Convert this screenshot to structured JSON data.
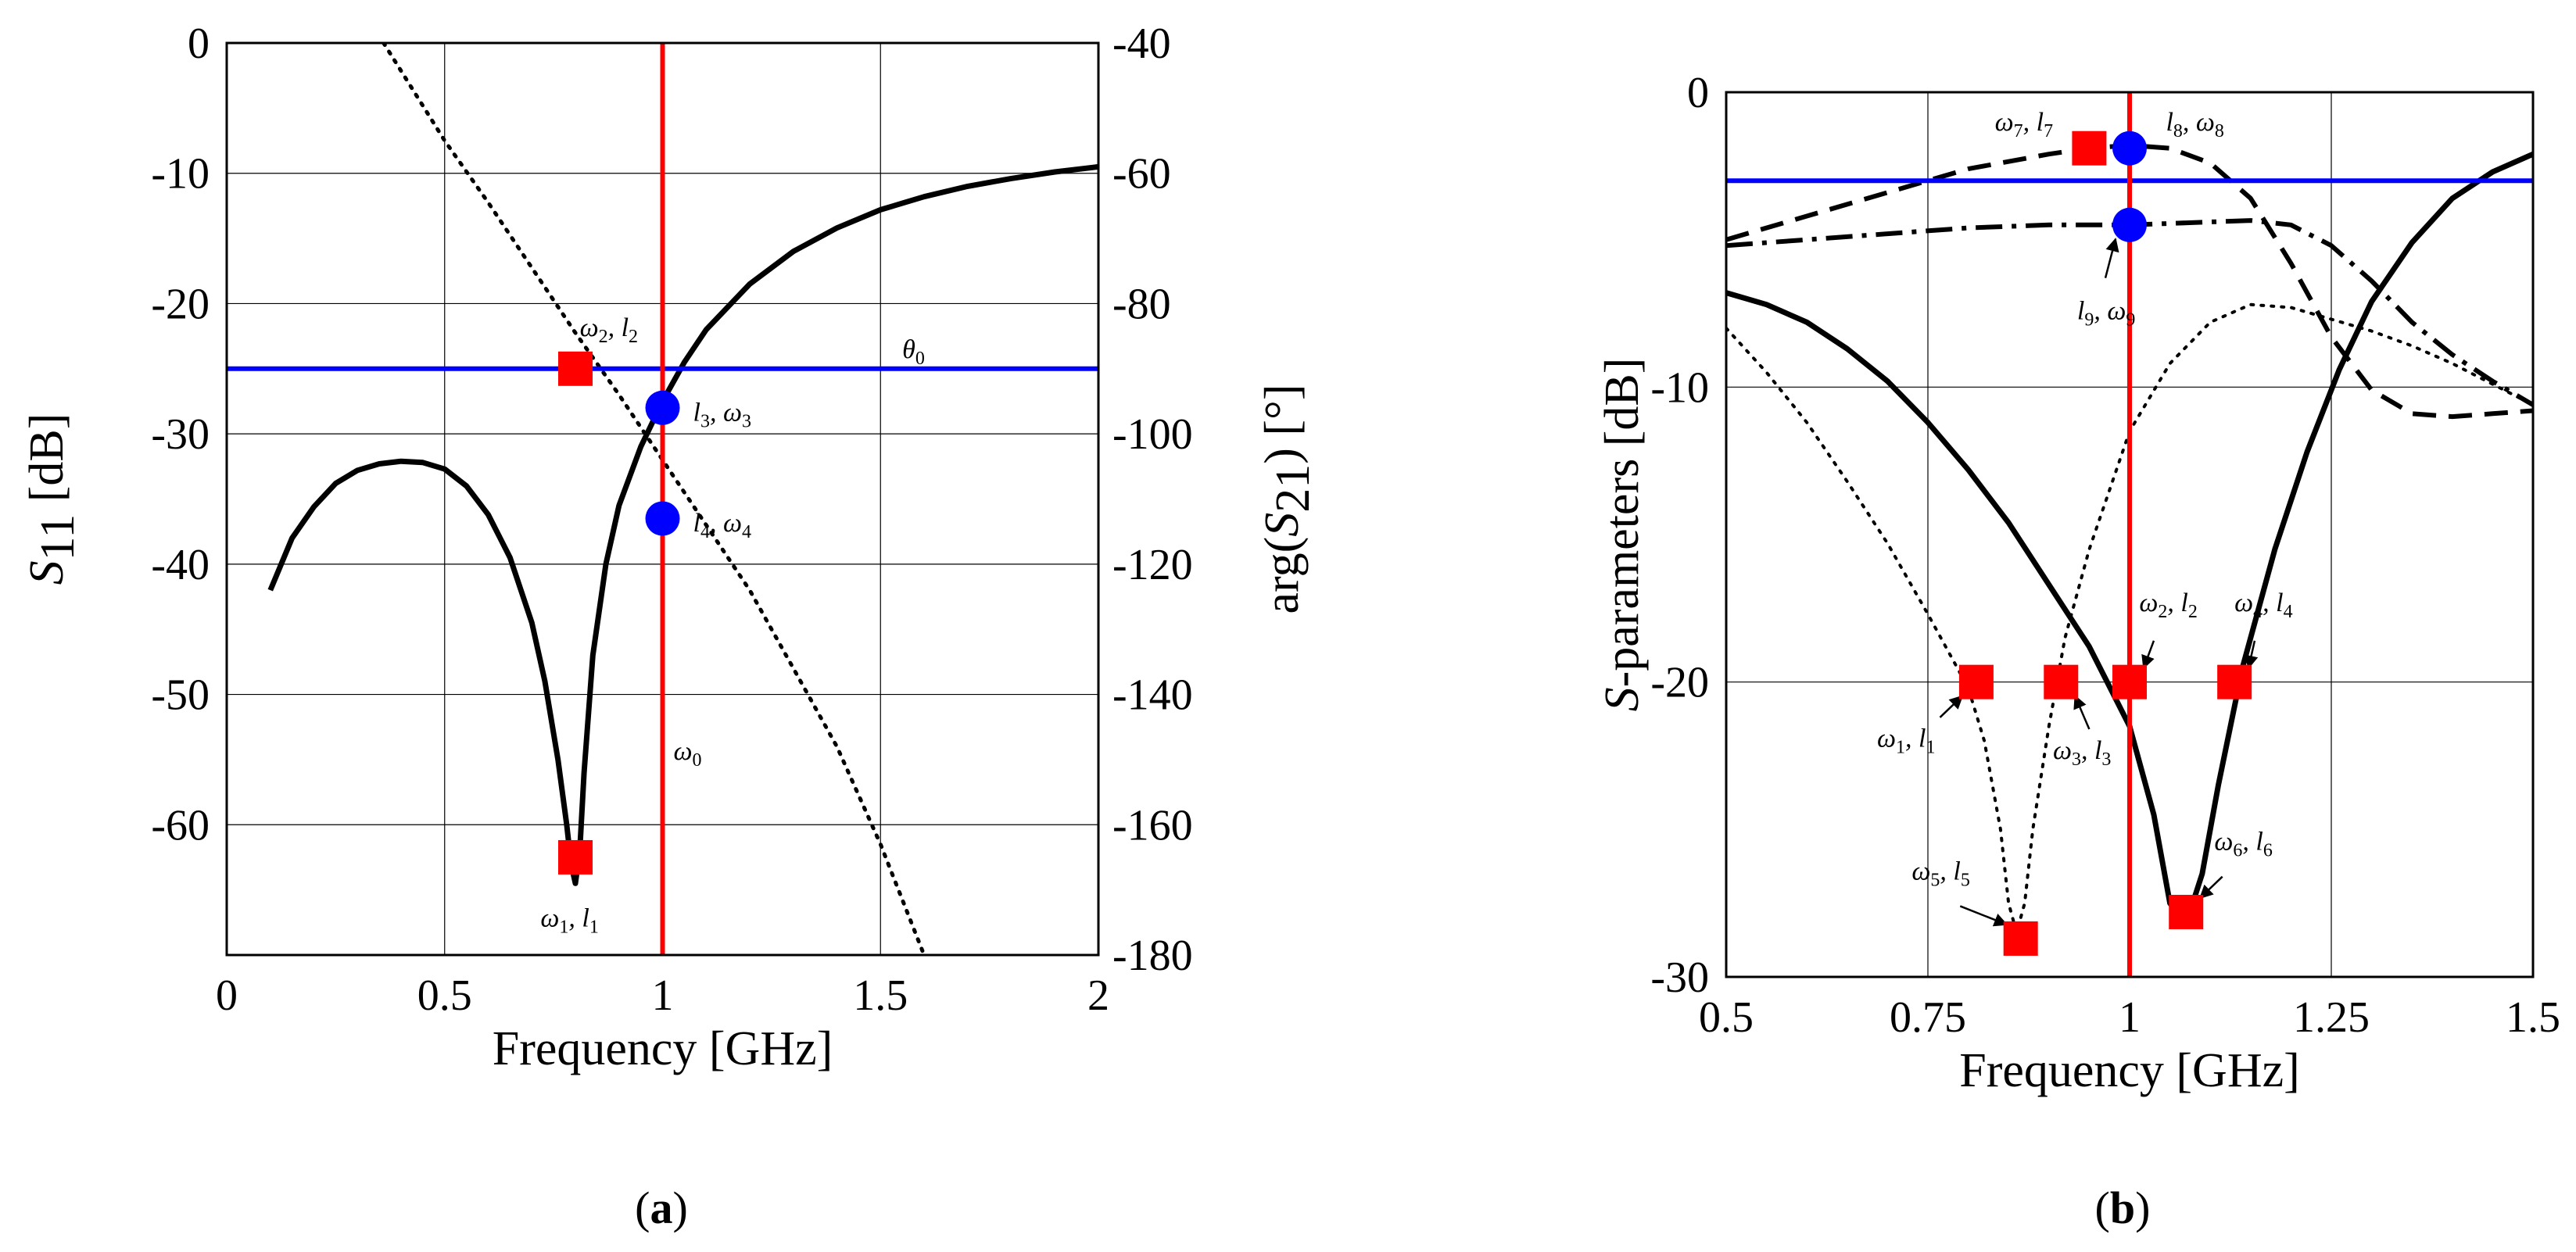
{
  "charts": [
    {
      "id": "a",
      "type": "line",
      "caption": {
        "open": "(",
        "letter": "a",
        "close": ")"
      },
      "xlabel": "Frequency [GHz]",
      "ylabel": {
        "main": "S",
        "sub": "11",
        "unit": " [dB]"
      },
      "y2label": {
        "pre": "arg(",
        "main": "S",
        "sub": "21",
        "post": ") [°]"
      },
      "xlim": [
        0,
        2
      ],
      "ylim": [
        -70,
        0
      ],
      "y2lim": [
        -180,
        -40
      ],
      "xticks": [
        0,
        0.5,
        1,
        1.5,
        2
      ],
      "xticklabels": [
        "0",
        "0.5",
        "1",
        "1.5",
        "2"
      ],
      "yticks": [
        0,
        -10,
        -20,
        -30,
        -40,
        -50,
        -60
      ],
      "yticklabels": [
        "0",
        "-10",
        "-20",
        "-30",
        "-40",
        "-50",
        "-60"
      ],
      "y2ticks": [
        -40,
        -60,
        -80,
        -100,
        -120,
        -140,
        -160,
        -180
      ],
      "y2ticklabels": [
        "-40",
        "-60",
        "-80",
        "-100",
        "-120",
        "-140",
        "-160",
        "-180"
      ],
      "grid": true,
      "series": [
        {
          "name": "S11",
          "axis": "left",
          "style": "solid",
          "width": 7,
          "x": [
            0.1,
            0.15,
            0.2,
            0.25,
            0.3,
            0.35,
            0.4,
            0.45,
            0.5,
            0.55,
            0.6,
            0.65,
            0.7,
            0.73,
            0.76,
            0.78,
            0.79,
            0.8,
            0.81,
            0.82,
            0.84,
            0.87,
            0.9,
            0.95,
            1.0,
            1.05,
            1.1,
            1.2,
            1.3,
            1.4,
            1.5,
            1.6,
            1.7,
            1.8,
            1.9,
            2.0
          ],
          "y": [
            -42,
            -38,
            -35.6,
            -33.8,
            -32.8,
            -32.3,
            -32.1,
            -32.2,
            -32.7,
            -34,
            -36.2,
            -39.5,
            -44.5,
            -49,
            -55,
            -60,
            -63,
            -64.5,
            -62,
            -56,
            -47,
            -40,
            -35.5,
            -31,
            -27.5,
            -24.5,
            -22,
            -18.5,
            -16,
            -14.2,
            -12.8,
            -11.8,
            -11,
            -10.4,
            -9.9,
            -9.5
          ]
        },
        {
          "name": "arg(S21)",
          "axis": "right",
          "style": "dotted",
          "width": 5,
          "x": [
            0.36,
            0.5,
            0.6,
            0.7,
            0.8,
            0.9,
            1.0,
            1.1,
            1.2,
            1.3,
            1.4,
            1.5,
            1.6
          ],
          "y": [
            -40,
            -55,
            -64.5,
            -74.5,
            -84.5,
            -94,
            -104,
            -114,
            -124,
            -136,
            -148,
            -163,
            -180
          ]
        }
      ],
      "hlines": [
        {
          "axis": "left",
          "value": -25,
          "color": "#0000ff",
          "label": {
            "sym": "θ",
            "sub": "0"
          },
          "label_x": 1.55
        }
      ],
      "vlines": [
        {
          "value": 1.0,
          "color": "#ff0000",
          "label": {
            "sym": "ω",
            "sub": "0"
          },
          "label_y": -55
        }
      ],
      "markers": [
        {
          "shape": "square",
          "x": 0.8,
          "y": -25,
          "label": [
            {
              "t": "ω",
              "s": "2"
            },
            {
              "t": ", l",
              "s": "2"
            }
          ],
          "lx": 0.81,
          "ly": -22.5
        },
        {
          "shape": "square",
          "x": 0.8,
          "y": -62.5,
          "label": [
            {
              "t": "ω",
              "s": "1"
            },
            {
              "t": ", l",
              "s": "1"
            }
          ],
          "lx": 0.72,
          "ly": -67.8
        },
        {
          "shape": "circle",
          "x": 1.0,
          "y": -28,
          "label": [
            {
              "t": "l",
              "s": "3"
            },
            {
              "t": ", ω",
              "s": "3"
            }
          ],
          "lx": 1.07,
          "ly": -29
        },
        {
          "shape": "circle",
          "x": 1.0,
          "y": -36.5,
          "label": [
            {
              "t": "l",
              "s": "4"
            },
            {
              "t": ", ω",
              "s": "4"
            }
          ],
          "lx": 1.07,
          "ly": -37.5
        }
      ]
    },
    {
      "id": "b",
      "type": "line",
      "caption": {
        "open": "(",
        "letter": "b",
        "close": ")"
      },
      "xlabel": "Frequency [GHz]",
      "ylabel": {
        "main": "S",
        "sub": "",
        "unit": "-parameters [dB]"
      },
      "xlim": [
        0.5,
        1.5
      ],
      "ylim": [
        -30,
        0
      ],
      "xticks": [
        0.5,
        0.75,
        1,
        1.25,
        1.5
      ],
      "xticklabels": [
        "0.5",
        "0.75",
        "1",
        "1.25",
        "1.5"
      ],
      "yticks": [
        0,
        -10,
        -20,
        -30
      ],
      "yticklabels": [
        "0",
        "-10",
        "-20",
        "-30"
      ],
      "grid": true,
      "series": [
        {
          "name": "solid",
          "style": "solid",
          "width": 7,
          "x": [
            0.5,
            0.55,
            0.6,
            0.65,
            0.7,
            0.75,
            0.8,
            0.85,
            0.9,
            0.95,
            1.0,
            1.03,
            1.05,
            1.07,
            1.09,
            1.11,
            1.14,
            1.18,
            1.22,
            1.26,
            1.3,
            1.35,
            1.4,
            1.45,
            1.5
          ],
          "y": [
            -6.8,
            -7.2,
            -7.8,
            -8.7,
            -9.8,
            -11.2,
            -12.8,
            -14.6,
            -16.7,
            -18.8,
            -21.5,
            -24.5,
            -27.5,
            -28.2,
            -26.5,
            -23.5,
            -19.5,
            -15.5,
            -12.2,
            -9.4,
            -7.1,
            -5.1,
            -3.6,
            -2.7,
            -2.1
          ]
        },
        {
          "name": "dotted",
          "style": "dotted",
          "width": 4,
          "x": [
            0.5,
            0.55,
            0.6,
            0.65,
            0.7,
            0.75,
            0.8,
            0.82,
            0.84,
            0.85,
            0.86,
            0.87,
            0.88,
            0.9,
            0.92,
            0.95,
            1.0,
            1.05,
            1.1,
            1.15,
            1.2,
            1.25,
            1.3,
            1.35,
            1.4,
            1.45,
            1.5
          ],
          "y": [
            -8,
            -9.5,
            -11.2,
            -13.2,
            -15.3,
            -17.7,
            -20.2,
            -22,
            -25,
            -27.5,
            -28.5,
            -27.5,
            -25,
            -21.5,
            -18.5,
            -15.5,
            -11.5,
            -9.2,
            -7.8,
            -7.2,
            -7.3,
            -7.7,
            -8.1,
            -8.6,
            -9.2,
            -9.9,
            -10.6
          ]
        },
        {
          "name": "dashed",
          "style": "dashed",
          "width": 6,
          "x": [
            0.5,
            0.6,
            0.7,
            0.8,
            0.9,
            0.95,
            1.0,
            1.05,
            1.1,
            1.15,
            1.2,
            1.25,
            1.3,
            1.35,
            1.4,
            1.45,
            1.5
          ],
          "y": [
            -5,
            -4.2,
            -3.4,
            -2.6,
            -2.1,
            -1.9,
            -1.8,
            -1.9,
            -2.4,
            -3.6,
            -5.8,
            -8.3,
            -10.1,
            -10.9,
            -11.0,
            -10.9,
            -10.8
          ]
        },
        {
          "name": "dashdot",
          "style": "dashdot",
          "width": 6,
          "x": [
            0.5,
            0.6,
            0.7,
            0.8,
            0.9,
            1.0,
            1.1,
            1.15,
            1.2,
            1.25,
            1.3,
            1.35,
            1.4,
            1.45,
            1.5
          ],
          "y": [
            -5.2,
            -5.0,
            -4.8,
            -4.6,
            -4.5,
            -4.5,
            -4.4,
            -4.35,
            -4.5,
            -5.2,
            -6.4,
            -7.8,
            -8.9,
            -9.8,
            -10.6
          ]
        }
      ],
      "hlines": [
        {
          "value": -3,
          "color": "#0000ff"
        }
      ],
      "vlines": [
        {
          "value": 1.0,
          "color": "#ff0000"
        }
      ],
      "markers": [
        {
          "shape": "square",
          "x": 0.95,
          "y": -1.9,
          "label": [
            {
              "t": "ω",
              "s": "7"
            },
            {
              "t": ", l",
              "s": "7"
            }
          ],
          "lx": 0.833,
          "ly": -1.3
        },
        {
          "shape": "circle",
          "x": 1.0,
          "y": -1.9,
          "label": [
            {
              "t": "l",
              "s": "8"
            },
            {
              "t": ", ω",
              "s": "8"
            }
          ],
          "lx": 1.045,
          "ly": -1.3
        },
        {
          "shape": "circle",
          "x": 1.0,
          "y": -4.5,
          "label": [
            {
              "t": "l",
              "s": "9"
            },
            {
              "t": ", ω",
              "s": "9"
            }
          ],
          "lx": 0.935,
          "ly": -7.7,
          "arrow_from": [
            0.97,
            -6.3
          ]
        },
        {
          "shape": "square",
          "x": 0.81,
          "y": -20,
          "label": [
            {
              "t": "ω",
              "s": "1"
            },
            {
              "t": ", l",
              "s": "1"
            }
          ],
          "lx": 0.687,
          "ly": -22.2,
          "arrow_from": [
            0.765,
            -21.2
          ]
        },
        {
          "shape": "square",
          "x": 0.915,
          "y": -20,
          "label": [
            {
              "t": "ω",
              "s": "3"
            },
            {
              "t": ", l",
              "s": "3"
            }
          ],
          "lx": 0.905,
          "ly": -22.6,
          "arrow_from": [
            0.95,
            -21.6
          ]
        },
        {
          "shape": "square",
          "x": 1.0,
          "y": -20,
          "label": [
            {
              "t": "ω",
              "s": "2"
            },
            {
              "t": ", l",
              "s": "2"
            }
          ],
          "lx": 1.012,
          "ly": -17.6,
          "arrow_from": [
            1.03,
            -18.6
          ]
        },
        {
          "shape": "square",
          "x": 1.13,
          "y": -20,
          "label": [
            {
              "t": "ω",
              "s": "4"
            },
            {
              "t": ", l",
              "s": "4"
            }
          ],
          "lx": 1.13,
          "ly": -17.6,
          "arrow_from": [
            1.155,
            -18.6
          ]
        },
        {
          "shape": "square",
          "x": 0.865,
          "y": -28.7,
          "label": [
            {
              "t": "ω",
              "s": "5"
            },
            {
              "t": ", l",
              "s": "5"
            }
          ],
          "lx": 0.73,
          "ly": -26.7,
          "arrow_from": [
            0.79,
            -27.6
          ]
        },
        {
          "shape": "square",
          "x": 1.07,
          "y": -27.8,
          "label": [
            {
              "t": "ω",
              "s": "6"
            },
            {
              "t": ", l",
              "s": "6"
            }
          ],
          "lx": 1.105,
          "ly": -25.7,
          "arrow_from": [
            1.115,
            -26.6
          ]
        }
      ]
    }
  ]
}
